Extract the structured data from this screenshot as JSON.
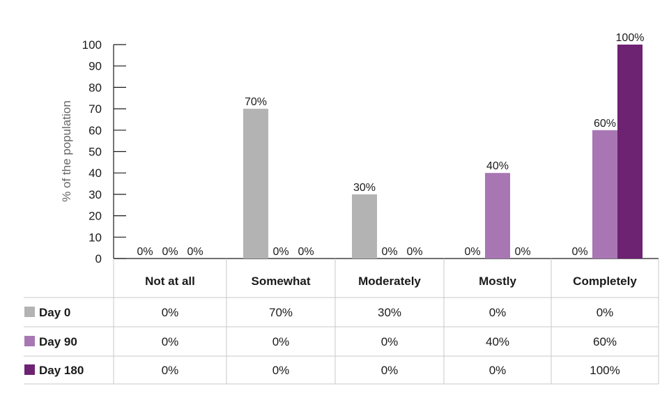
{
  "chart_data": {
    "type": "bar",
    "ylabel": "% of the population",
    "ylim": [
      0,
      100
    ],
    "yticks": [
      0,
      10,
      20,
      30,
      40,
      50,
      60,
      70,
      80,
      90,
      100
    ],
    "categories": [
      "Not at all",
      "Somewhat",
      "Moderately",
      "Mostly",
      "Completely"
    ],
    "series": [
      {
        "name": "Day 0",
        "color": "#b3b3b3",
        "values": [
          0,
          70,
          30,
          0,
          0
        ],
        "labels": [
          "0%",
          "70%",
          "30%",
          "0%",
          "0%"
        ]
      },
      {
        "name": "Day 90",
        "color": "#a877b3",
        "values": [
          0,
          0,
          0,
          40,
          60
        ],
        "labels": [
          "0%",
          "0%",
          "0%",
          "40%",
          "60%"
        ]
      },
      {
        "name": "Day 180",
        "color": "#6e2272",
        "values": [
          0,
          0,
          0,
          0,
          100
        ],
        "labels": [
          "0%",
          "0%",
          "0%",
          "0%",
          "100%"
        ]
      }
    ],
    "grid": false,
    "legend": "table-below"
  }
}
